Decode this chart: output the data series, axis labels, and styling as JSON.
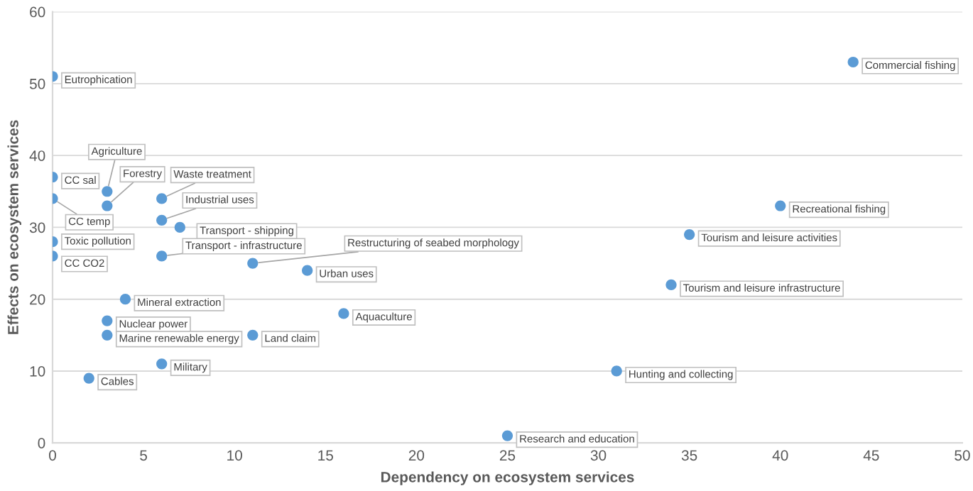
{
  "chart_data": {
    "type": "scatter",
    "xlabel": "Dependency on ecosystem services",
    "ylabel": "Effects on ecosystem services",
    "xlim": [
      0,
      50
    ],
    "ylim": [
      0,
      60
    ],
    "xticks": [
      0,
      5,
      10,
      15,
      20,
      25,
      30,
      35,
      40,
      45,
      50
    ],
    "yticks": [
      0,
      10,
      20,
      30,
      40,
      50,
      60
    ],
    "grid": "y",
    "marker": "circle",
    "series": [
      {
        "color": "#5b9bd5",
        "x": [
          0,
          44,
          0,
          3,
          3,
          0,
          6,
          6,
          7,
          6,
          11,
          14,
          0,
          0,
          4,
          16,
          3,
          3,
          11,
          6,
          2,
          40,
          35,
          34,
          31,
          25
        ],
        "values": [
          51,
          53,
          37,
          35,
          33,
          34,
          34,
          31,
          30,
          26,
          25,
          24,
          28,
          26,
          20,
          18,
          17,
          15,
          15,
          11,
          9,
          33,
          29,
          22,
          10,
          1
        ],
        "value_labels": [
          "Eutrophication",
          "Commercial fishing",
          "CC sal",
          "Agriculture",
          "Forestry",
          "CC temp",
          "Waste treatment",
          "Industrial uses",
          "Transport - shipping",
          "Transport - infrastructure",
          "Restructuring of seabed morphology",
          "Urban uses",
          "Toxic pollution",
          "CC CO2",
          "Mineral extraction",
          "Aquaculture",
          "Nuclear power",
          "Marine renewable energy",
          "Land claim",
          "Military",
          "Cables",
          "Recreational fishing",
          "Tourism and leisure activities",
          "Tourism and leisure infrastructure",
          "Hunting and collecting",
          "Research and education"
        ]
      }
    ]
  }
}
